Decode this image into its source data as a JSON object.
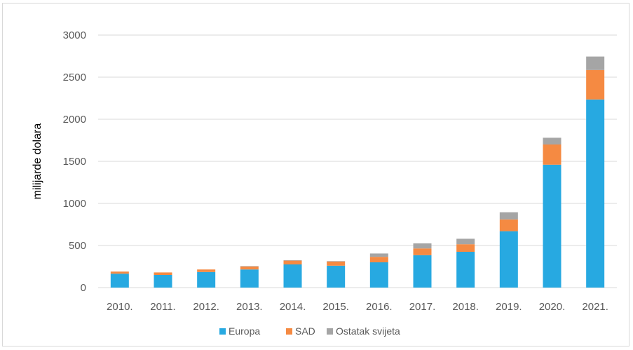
{
  "chart_data": {
    "type": "bar",
    "stacked": true,
    "ylabel": "milijarde dolara",
    "xlabel": "",
    "title": "",
    "categories": [
      "2010.",
      "2011.",
      "2012.",
      "2013.",
      "2014.",
      "2015.",
      "2016.",
      "2017.",
      "2018.",
      "2019.",
      "2020.",
      "2021."
    ],
    "series": [
      {
        "name": "Europa",
        "color": "#27a9e1",
        "values": [
          165,
          150,
          185,
          215,
          275,
          260,
          300,
          385,
          425,
          670,
          1460,
          2235
        ]
      },
      {
        "name": "SAD",
        "color": "#f58a42",
        "values": [
          25,
          30,
          30,
          35,
          45,
          50,
          65,
          80,
          90,
          140,
          240,
          350
        ]
      },
      {
        "name": "Ostatak svijeta",
        "color": "#a5a5a5",
        "values": [
          0,
          0,
          0,
          5,
          5,
          5,
          40,
          60,
          65,
          85,
          80,
          160
        ]
      }
    ],
    "ylim": [
      0,
      3000
    ],
    "yticks": [
      0,
      500,
      1000,
      1500,
      2000,
      2500,
      3000
    ],
    "grid": true,
    "legend_position": "bottom"
  }
}
